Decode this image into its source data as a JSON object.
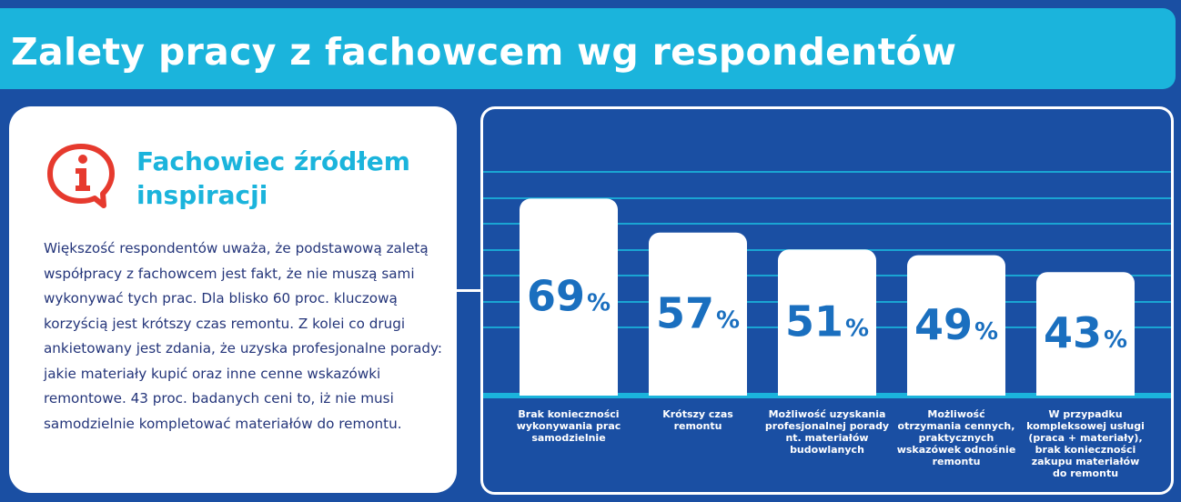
{
  "header": {
    "title": "Zalety pracy z fachowcem wg respondentów"
  },
  "info": {
    "heading": "Fachowiec źródłem inspiracji",
    "body": "Większość respondentów uważa, że podstawową zaletą współpracy z fachowcem jest fakt, że nie muszą sami wykonywać tych prac. Dla blisko 60 proc.  kluczową korzyścią jest krótszy czas remontu. Z kolei co drugi ankietowany jest zdania, że uzyska profesjonalne porady: jakie materiały kupić oraz inne cenne wskazówki remontowe. 43 proc. badanych ceni to, iż nie musi samodzielnie kompletować materiałów do remontu.",
    "icon": "info-speech-bubble-icon",
    "icon_color": "#e63a2e"
  },
  "colors": {
    "background": "#1a4fa3",
    "header": "#1bb4dc",
    "accent": "#1bb4dc",
    "value_text": "#1a6fbf",
    "bar": "#ffffff",
    "gridline": "#1bb4dc"
  },
  "chart_data": {
    "type": "bar",
    "categories": [
      "Brak konieczności wykonywania prac samodzielnie",
      "Krótszy czas remontu",
      "Możliwość uzyskania profesjonalnej porady nt. materiałów budowlanych",
      "Możliwość otrzymania cennych, praktycznych wskazówek odnośnie remontu",
      "W przypadku kompleksowej usługi (praca + materiały), brak konieczności zakupu materiałów do remontu"
    ],
    "category_lines": [
      [
        "Brak konieczności",
        "wykonywania prac",
        "samodzielnie"
      ],
      [
        "Krótszy czas",
        "remontu"
      ],
      [
        "Możliwość uzyskania",
        "profesjonalnej porady",
        "nt. materiałów",
        "budowlanych"
      ],
      [
        "Możliwość",
        "otrzymania cennych,",
        "praktycznych",
        "wskazówek odnośnie",
        "remontu"
      ],
      [
        "W przypadku",
        "kompleksowej usługi",
        "(praca + materiały),",
        "brak konieczności",
        "zakupu materiałów",
        "do remontu"
      ]
    ],
    "values": [
      69,
      57,
      51,
      49,
      43
    ],
    "value_labels": [
      "69",
      "57",
      "51",
      "49",
      "43"
    ],
    "unit": "%",
    "ylim": [
      0,
      100
    ],
    "grid": true
  }
}
